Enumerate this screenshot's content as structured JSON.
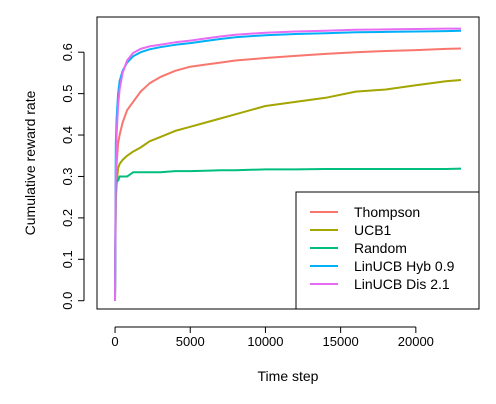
{
  "chart_data": {
    "type": "line",
    "xlabel": "Time step",
    "ylabel": "Cumulative reward rate",
    "xlim": [
      -1200,
      24200
    ],
    "ylim": [
      -0.02,
      0.685
    ],
    "xticks": [
      0,
      5000,
      10000,
      15000,
      20000
    ],
    "xtick_labels": [
      "0",
      "5000",
      "10000",
      "15000",
      "20000"
    ],
    "yticks": [
      0.0,
      0.1,
      0.2,
      0.3,
      0.4,
      0.5,
      0.6
    ],
    "ytick_labels": [
      "0.0",
      "0.1",
      "0.2",
      "0.3",
      "0.4",
      "0.5",
      "0.6"
    ],
    "grid": false,
    "legend_position": "bottom-right",
    "series": [
      {
        "name": "Thompson",
        "color": "#F8766D",
        "x": [
          0,
          50,
          100,
          200,
          300,
          500,
          800,
          1200,
          1700,
          2300,
          3000,
          4000,
          5000,
          6000,
          7000,
          8000,
          10000,
          12000,
          14000,
          16000,
          18000,
          20000,
          22000,
          23000
        ],
        "y": [
          0.0,
          0.28,
          0.33,
          0.38,
          0.4,
          0.43,
          0.46,
          0.48,
          0.505,
          0.525,
          0.54,
          0.555,
          0.565,
          0.57,
          0.575,
          0.58,
          0.586,
          0.591,
          0.596,
          0.6,
          0.603,
          0.605,
          0.608,
          0.609
        ]
      },
      {
        "name": "UCB1",
        "color": "#A3A500",
        "x": [
          0,
          50,
          100,
          200,
          300,
          500,
          800,
          1200,
          1700,
          2300,
          3000,
          4000,
          5000,
          6000,
          7000,
          8000,
          10000,
          12000,
          14000,
          16000,
          18000,
          20000,
          22000,
          23000
        ],
        "y": [
          0.0,
          0.24,
          0.28,
          0.32,
          0.33,
          0.34,
          0.35,
          0.36,
          0.37,
          0.385,
          0.395,
          0.41,
          0.42,
          0.43,
          0.44,
          0.45,
          0.47,
          0.48,
          0.49,
          0.505,
          0.51,
          0.52,
          0.53,
          0.533
        ]
      },
      {
        "name": "Random",
        "color": "#00BF7D",
        "x": [
          0,
          50,
          100,
          200,
          300,
          500,
          800,
          1200,
          1700,
          2300,
          3000,
          4000,
          5000,
          6000,
          7000,
          8000,
          10000,
          12000,
          14000,
          16000,
          18000,
          20000,
          22000,
          23000
        ],
        "y": [
          0.0,
          0.26,
          0.29,
          0.29,
          0.3,
          0.3,
          0.3,
          0.31,
          0.31,
          0.31,
          0.31,
          0.313,
          0.313,
          0.314,
          0.315,
          0.315,
          0.317,
          0.317,
          0.318,
          0.318,
          0.318,
          0.318,
          0.318,
          0.319
        ]
      },
      {
        "name": "LinUCB Hyb 0.9",
        "color": "#00B0F6",
        "x": [
          0,
          50,
          100,
          200,
          300,
          500,
          800,
          1200,
          1700,
          2300,
          3000,
          4000,
          5000,
          6000,
          7000,
          8000,
          10000,
          12000,
          14000,
          16000,
          18000,
          20000,
          22000,
          23000
        ],
        "y": [
          0.0,
          0.38,
          0.44,
          0.5,
          0.53,
          0.555,
          0.575,
          0.59,
          0.6,
          0.607,
          0.612,
          0.618,
          0.622,
          0.627,
          0.632,
          0.636,
          0.641,
          0.644,
          0.646,
          0.648,
          0.649,
          0.65,
          0.651,
          0.652
        ]
      },
      {
        "name": "LinUCB Dis 2.1",
        "color": "#E76BF3",
        "x": [
          0,
          50,
          100,
          200,
          300,
          500,
          800,
          1200,
          1700,
          2300,
          3000,
          4000,
          5000,
          6000,
          7000,
          8000,
          10000,
          12000,
          14000,
          16000,
          18000,
          20000,
          22000,
          23000
        ],
        "y": [
          0.0,
          0.3,
          0.4,
          0.47,
          0.51,
          0.55,
          0.58,
          0.598,
          0.608,
          0.614,
          0.618,
          0.624,
          0.628,
          0.633,
          0.638,
          0.642,
          0.647,
          0.65,
          0.652,
          0.654,
          0.655,
          0.656,
          0.657,
          0.657
        ]
      }
    ]
  }
}
